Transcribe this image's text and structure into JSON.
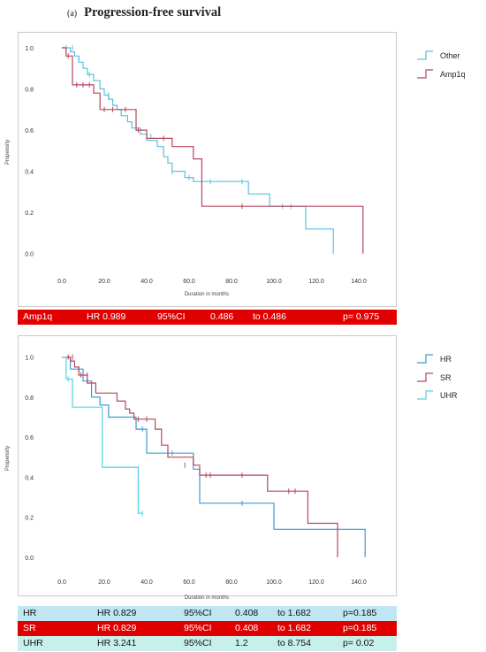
{
  "figure_label": "(a)",
  "figure_title": "Progression-free survival",
  "colors": {
    "cyan": "#5bc0de",
    "red": "#b5475b",
    "aqua": "#4fd6e0",
    "blue": "#3d9ad1"
  },
  "chart_data": [
    {
      "type": "line",
      "subtype": "kaplan-meier",
      "xlabel": "Duration in months",
      "ylabel": "Propensity",
      "xlim": [
        -5,
        150
      ],
      "ylim": [
        -0.04,
        1.06
      ],
      "xticks": [
        0,
        20,
        40,
        60,
        80,
        100,
        120,
        140
      ],
      "xtick_labels": [
        "0.0",
        "20.0",
        "40.0",
        "60.0",
        "80.0",
        "100.0",
        "120.0",
        "140.0"
      ],
      "yticks": [
        0,
        0.2,
        0.4,
        0.6,
        0.8,
        1.0
      ],
      "ytick_labels": [
        "0.0",
        "0.2",
        "0.4",
        "0.6",
        "0.8",
        "1.0"
      ],
      "legend_position": "right",
      "grid": false,
      "series": [
        {
          "name": "Other",
          "color": "#5bc0de",
          "steps": [
            [
              0,
              1.0
            ],
            [
              4,
              0.98
            ],
            [
              6,
              0.96
            ],
            [
              8,
              0.93
            ],
            [
              10,
              0.9
            ],
            [
              12,
              0.87
            ],
            [
              15,
              0.84
            ],
            [
              18,
              0.8
            ],
            [
              20,
              0.77
            ],
            [
              22,
              0.75
            ],
            [
              24,
              0.72
            ],
            [
              26,
              0.7
            ],
            [
              28,
              0.67
            ],
            [
              31,
              0.64
            ],
            [
              33,
              0.61
            ],
            [
              37,
              0.58
            ],
            [
              40,
              0.55
            ],
            [
              45,
              0.52
            ],
            [
              48,
              0.47
            ],
            [
              50,
              0.44
            ],
            [
              52,
              0.4
            ],
            [
              58,
              0.37
            ],
            [
              62,
              0.35
            ],
            [
              88,
              0.29
            ],
            [
              98,
              0.23
            ],
            [
              115,
              0.12
            ],
            [
              128,
              0.0
            ]
          ],
          "censor": [
            [
              2,
              1.0
            ],
            [
              5,
              1.0
            ],
            [
              8,
              0.95
            ],
            [
              13,
              0.87
            ],
            [
              22,
              0.77
            ],
            [
              35,
              0.61
            ],
            [
              42,
              0.57
            ],
            [
              52,
              0.4
            ],
            [
              60,
              0.37
            ],
            [
              70,
              0.35
            ],
            [
              85,
              0.35
            ],
            [
              104,
              0.23
            ],
            [
              108,
              0.23
            ]
          ]
        },
        {
          "name": "Amp1q",
          "color": "#b5475b",
          "steps": [
            [
              0,
              1.0
            ],
            [
              2,
              0.96
            ],
            [
              5,
              0.82
            ],
            [
              15,
              0.78
            ],
            [
              18,
              0.7
            ],
            [
              35,
              0.6
            ],
            [
              40,
              0.56
            ],
            [
              52,
              0.52
            ],
            [
              62,
              0.46
            ],
            [
              66,
              0.23
            ],
            [
              142,
              0.0
            ]
          ],
          "censor": [
            [
              3,
              0.96
            ],
            [
              7,
              0.82
            ],
            [
              10,
              0.82
            ],
            [
              13,
              0.82
            ],
            [
              20,
              0.7
            ],
            [
              24,
              0.7
            ],
            [
              30,
              0.7
            ],
            [
              36,
              0.6
            ],
            [
              48,
              0.56
            ],
            [
              85,
              0.23
            ]
          ]
        }
      ]
    },
    {
      "type": "line",
      "subtype": "kaplan-meier",
      "xlabel": "Duration in months",
      "ylabel": "Propensity",
      "xlim": [
        -5,
        150
      ],
      "ylim": [
        -0.04,
        1.06
      ],
      "xticks": [
        0,
        20,
        40,
        60,
        80,
        100,
        120,
        140
      ],
      "xtick_labels": [
        "0.0",
        "20.0",
        "40.0",
        "60.0",
        "80.0",
        "100.0",
        "120.0",
        "140.0"
      ],
      "yticks": [
        0,
        0.2,
        0.4,
        0.6,
        0.8,
        1.0
      ],
      "ytick_labels": [
        "0.0",
        "0.2",
        "0.4",
        "0.6",
        "0.8",
        "1.0"
      ],
      "legend_position": "right",
      "grid": false,
      "series": [
        {
          "name": "HR",
          "color": "#3d9ad1",
          "steps": [
            [
              0,
              1.0
            ],
            [
              4,
              0.94
            ],
            [
              10,
              0.88
            ],
            [
              14,
              0.8
            ],
            [
              18,
              0.76
            ],
            [
              22,
              0.7
            ],
            [
              35,
              0.64
            ],
            [
              40,
              0.52
            ],
            [
              62,
              0.44
            ],
            [
              65,
              0.27
            ],
            [
              100,
              0.14
            ],
            [
              143,
              0.0
            ]
          ],
          "censor": [
            [
              8,
              0.94
            ],
            [
              12,
              0.88
            ],
            [
              38,
              0.64
            ],
            [
              52,
              0.52
            ],
            [
              85,
              0.27
            ]
          ]
        },
        {
          "name": "SR",
          "color": "#b5475b",
          "steps": [
            [
              0,
              1.0
            ],
            [
              4,
              0.98
            ],
            [
              6,
              0.95
            ],
            [
              8,
              0.91
            ],
            [
              12,
              0.87
            ],
            [
              16,
              0.82
            ],
            [
              26,
              0.78
            ],
            [
              30,
              0.74
            ],
            [
              32,
              0.72
            ],
            [
              34,
              0.69
            ],
            [
              44,
              0.64
            ],
            [
              47,
              0.56
            ],
            [
              50,
              0.5
            ],
            [
              62,
              0.46
            ],
            [
              65,
              0.41
            ],
            [
              97,
              0.33
            ],
            [
              116,
              0.17
            ],
            [
              130,
              0.0
            ]
          ],
          "censor": [
            [
              3,
              1.0
            ],
            [
              5,
              1.0
            ],
            [
              9,
              0.91
            ],
            [
              12,
              0.91
            ],
            [
              36,
              0.69
            ],
            [
              40,
              0.69
            ],
            [
              58,
              0.46
            ],
            [
              68,
              0.41
            ],
            [
              70,
              0.41
            ],
            [
              85,
              0.41
            ],
            [
              107,
              0.33
            ],
            [
              110,
              0.33
            ]
          ]
        },
        {
          "name": "UHR",
          "color": "#4fd6e0",
          "steps": [
            [
              0,
              1.0
            ],
            [
              2,
              0.89
            ],
            [
              5,
              0.75
            ],
            [
              19,
              0.45
            ],
            [
              36,
              0.22
            ],
            [
              38,
              0.22
            ]
          ],
          "censor": [
            [
              3,
              0.89
            ],
            [
              38,
              0.22
            ]
          ]
        }
      ]
    }
  ],
  "stats_top": [
    {
      "group": "Amp1q",
      "hr": "HR 0.989",
      "ci_label": "95%CI",
      "ci_low": "0.486",
      "ci_high": "to 0.486",
      "p": "p= 0.975"
    }
  ],
  "stats_bottom": [
    {
      "group": "HR",
      "hr": "HR 0.829",
      "ci_label": "95%CI",
      "ci_low": "0.408",
      "ci_high": "to 1.682",
      "p": "p=0.185"
    },
    {
      "group": "SR",
      "hr": "HR 0.829",
      "ci_label": "95%CI",
      "ci_low": "0.408",
      "ci_high": "to 1.682",
      "p": "p=0.185"
    },
    {
      "group": "UHR",
      "hr": "HR 3.241",
      "ci_label": "95%CI",
      "ci_low": "1.2",
      "ci_high": "to 8.754",
      "p": "p= 0.02"
    }
  ]
}
